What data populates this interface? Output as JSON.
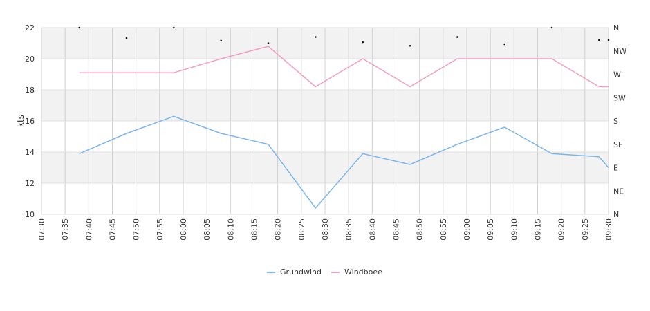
{
  "chart_data": {
    "type": "line",
    "ylabel": "kts",
    "ylim": [
      10,
      22
    ],
    "y_ticks": [
      "10",
      "12",
      "14",
      "16",
      "18",
      "20",
      "22"
    ],
    "x_ticks": [
      "07:30",
      "07:35",
      "07:40",
      "07:45",
      "07:50",
      "07:55",
      "08:00",
      "08:05",
      "08:10",
      "08:15",
      "08:20",
      "08:25",
      "08:30",
      "08:35",
      "08:40",
      "08:45",
      "08:50",
      "08:55",
      "09:00",
      "09:05",
      "09:10",
      "09:15",
      "09:20",
      "09:25",
      "09:30"
    ],
    "x_range": [
      "07:30",
      "09:30"
    ],
    "direction_axis": {
      "labels": [
        "N",
        "NW",
        "W",
        "SW",
        "S",
        "SE",
        "E",
        "NE",
        "N"
      ]
    },
    "grid": true,
    "legend_position": "bottom",
    "series": [
      {
        "name": "Grundwind",
        "color": "#7cb5ec",
        "x": [
          "07:38",
          "07:48",
          "07:58",
          "08:08",
          "08:18",
          "08:28",
          "08:38",
          "08:48",
          "08:58",
          "09:08",
          "09:18",
          "09:28",
          "09:30"
        ],
        "values": [
          13.9,
          15.2,
          16.3,
          15.2,
          14.5,
          10.4,
          13.9,
          13.2,
          14.5,
          15.6,
          13.9,
          13.7,
          13.0
        ]
      },
      {
        "name": "Windboee",
        "color": "#f19ec2",
        "x": [
          "07:38",
          "07:48",
          "07:58",
          "08:08",
          "08:18",
          "08:28",
          "08:38",
          "08:48",
          "08:58",
          "09:08",
          "09:18",
          "09:28",
          "09:30"
        ],
        "values": [
          19.1,
          19.1,
          19.1,
          20.0,
          20.8,
          18.2,
          20.0,
          18.2,
          20.0,
          20.0,
          20.0,
          18.2,
          18.2
        ]
      }
    ],
    "direction_markers": {
      "x": [
        "07:38",
        "07:48",
        "07:58",
        "08:08",
        "08:18",
        "08:28",
        "08:38",
        "08:48",
        "08:58",
        "09:08",
        "09:18",
        "09:28",
        "09:30"
      ],
      "values": [
        360,
        340,
        360,
        335,
        330,
        342,
        332,
        325,
        342,
        328,
        360,
        336,
        336
      ]
    }
  }
}
